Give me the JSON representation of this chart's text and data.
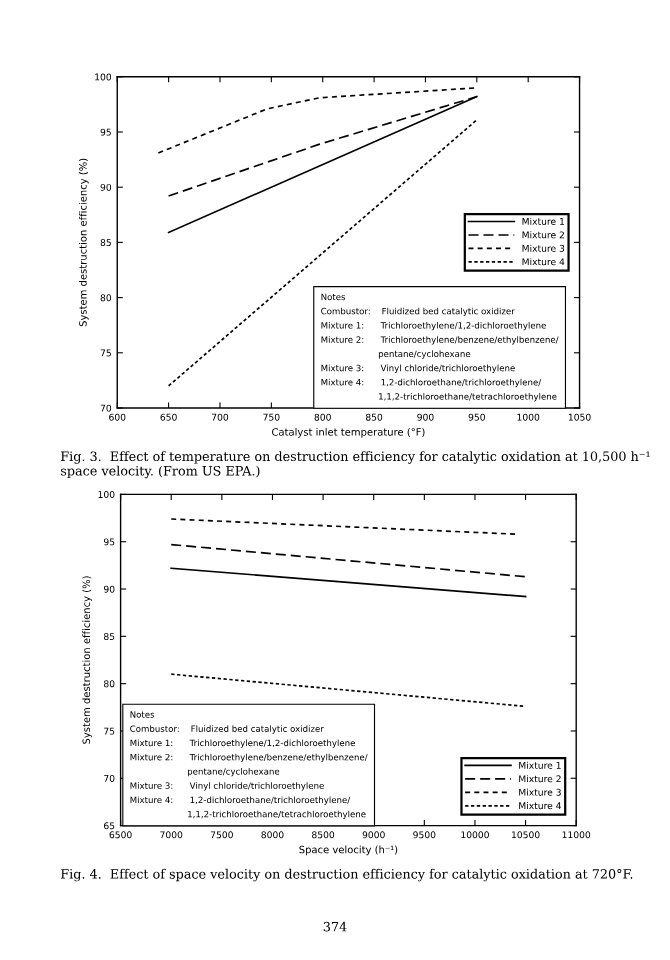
{
  "chart_data": [
    {
      "type": "line",
      "xlabel": "Catalyst inlet temperature (°F)",
      "ylabel": "System destruction efficiency (%)",
      "xlim": [
        600,
        1050
      ],
      "xticks": [
        600,
        650,
        700,
        750,
        800,
        850,
        900,
        950,
        1000,
        1050
      ],
      "ylim": [
        70,
        100
      ],
      "yticks": [
        70,
        75,
        80,
        85,
        90,
        95,
        100
      ],
      "legend": "right",
      "grid": false,
      "series": [
        {
          "name": "Mixture 1",
          "color": "#000000",
          "line_style": "solid",
          "x": [
            650,
            950
          ],
          "values": [
            85.9,
            98.2
          ]
        },
        {
          "name": "Mixture 2",
          "color": "#000000",
          "line_style": "dashed",
          "x": [
            650,
            797,
            950
          ],
          "values": [
            89.2,
            93.9,
            98.2
          ]
        },
        {
          "name": "Mixture 3",
          "color": "#000000",
          "line_style": "dashed",
          "x": [
            640,
            746,
            797,
            950
          ],
          "values": [
            93.1,
            97.1,
            98.1,
            99.0
          ]
        },
        {
          "name": "Mixture 4",
          "color": "#000000",
          "line_style": "dotted",
          "x": [
            650,
            950
          ],
          "values": [
            72.0,
            96.1
          ]
        }
      ],
      "annotations": [
        "Notes\nCombustor:    Fluidized bed catalytic oxidizer\nMixture 1:      Trichloroethylene/1,2-dichloroethylene\nMixture 2:      Trichloroethylene/benzene/ethylbenzene/\n                     pentane/cyclohexane\nMixture 3:      Vinyl chloride/trichloroethylene\nMixture 4:      1,2-dichloroethane/trichloroethylene/\n                     1,1,2-trichloroethane/tetrachloroethylene",
        "Fig. 3.  Effect of temperature on destruction efficiency for catalytic oxidation at 10,500 h⁻¹ space velocity. (From US EPA.)"
      ]
    },
    {
      "type": "line",
      "xlabel": "Space velocity (h⁻¹)",
      "ylabel": "System destruction efficiency (%)",
      "xlim": [
        6500,
        11000
      ],
      "xticks": [
        6500,
        7000,
        7500,
        8000,
        8500,
        9000,
        9500,
        10000,
        10500,
        11000
      ],
      "ylim": [
        65,
        100
      ],
      "yticks": [
        65,
        70,
        75,
        80,
        85,
        90,
        95,
        100
      ],
      "legend": "lower right",
      "grid": false,
      "series": [
        {
          "name": "Mixture 1",
          "color": "#000000",
          "line_style": "solid",
          "x": [
            7000,
            10500
          ],
          "values": [
            92.2,
            89.2
          ]
        },
        {
          "name": "Mixture 2",
          "color": "#000000",
          "line_style": "dashed",
          "x": [
            7000,
            10500
          ],
          "values": [
            94.7,
            91.3
          ]
        },
        {
          "name": "Mixture 3",
          "color": "#000000",
          "line_style": "dashed",
          "x": [
            7000,
            10400
          ],
          "values": [
            97.4,
            95.8
          ]
        },
        {
          "name": "Mixture 4",
          "color": "#000000",
          "line_style": "dotted",
          "x": [
            7000,
            10500
          ],
          "values": [
            81.0,
            77.6
          ]
        }
      ],
      "annotations": [
        "Notes\nCombustor:    Fluidized bed catalytic oxidizer\nMixture 1:      Trichloroethylene/1,2-dichloroethylene\nMixture 2:      Trichloroethylene/benzene/ethylbenzene/\n                     pentane/cyclohexane\nMixture 3:      Vinyl chloride/trichloroethylene\nMixture 4:      1,2-dichloroethane/trichloroethylene/\n                     1,1,2-trichloroethane/tetrachloroethylene",
        "Fig. 4.  Effect of space velocity on destruction efficiency for catalytic oxidation at 720°F.",
        "374"
      ]
    }
  ]
}
